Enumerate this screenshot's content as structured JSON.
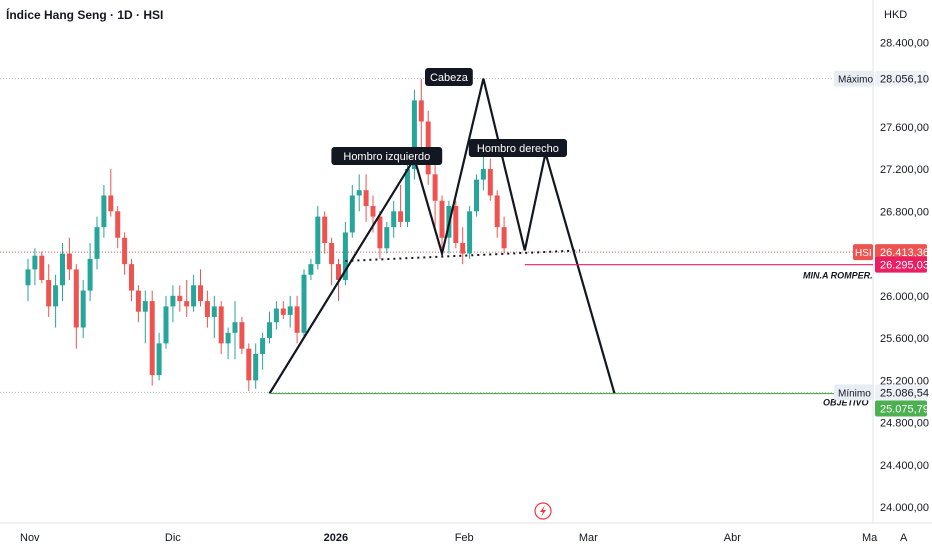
{
  "header": {
    "title": "Índice Hang Seng · 1D · HSI",
    "currency": "HKD"
  },
  "chart_data": {
    "type": "candlestick",
    "ylim": [
      23850,
      28800
    ],
    "y_ticks": [
      "28.400,00",
      "27.600,00",
      "27.200,00",
      "26.800,00",
      "26.000,00",
      "25.600,00",
      "25.200,00",
      "24.800,00",
      "24.400,00",
      "24.000,00"
    ],
    "y_tick_values": [
      28400,
      27600,
      27200,
      26800,
      26000,
      25600,
      25200,
      24800,
      24400,
      24000
    ],
    "x_ticks": [
      {
        "label": "Nov",
        "i": 0
      },
      {
        "label": "Dic",
        "i": 21
      },
      {
        "label": "2026",
        "i": 44
      },
      {
        "label": "Feb",
        "i": 63
      },
      {
        "label": "Mar",
        "i": 81
      },
      {
        "label": "Abr",
        "i": 102
      },
      {
        "label": "Ma",
        "i": 123
      }
    ],
    "candles": [
      [
        26100,
        26350,
        25950,
        26250
      ],
      [
        26250,
        26450,
        26100,
        26380
      ],
      [
        26380,
        26420,
        26120,
        26150
      ],
      [
        26150,
        26300,
        25800,
        25900
      ],
      [
        25900,
        26200,
        25700,
        26100
      ],
      [
        26100,
        26500,
        25950,
        26400
      ],
      [
        26400,
        26550,
        26150,
        26250
      ],
      [
        26250,
        26300,
        25500,
        25700
      ],
      [
        25700,
        26150,
        25600,
        26050
      ],
      [
        26050,
        26500,
        25950,
        26350
      ],
      [
        26350,
        26750,
        26250,
        26650
      ],
      [
        26650,
        27050,
        26550,
        26950
      ],
      [
        26950,
        27200,
        26750,
        26800
      ],
      [
        26800,
        26850,
        26450,
        26550
      ],
      [
        26550,
        26600,
        26200,
        26300
      ],
      [
        26300,
        26350,
        25950,
        26050
      ],
      [
        26050,
        26100,
        25750,
        25850
      ],
      [
        25850,
        26050,
        25550,
        25950
      ],
      [
        25950,
        26050,
        25150,
        25250
      ],
      [
        25250,
        25650,
        25200,
        25550
      ],
      [
        25550,
        26000,
        25500,
        25900
      ],
      [
        25900,
        26100,
        25750,
        26000
      ],
      [
        26000,
        26100,
        25850,
        25950
      ],
      [
        25950,
        26150,
        25800,
        25900
      ],
      [
        25900,
        26200,
        25850,
        26100
      ],
      [
        26100,
        26250,
        25900,
        25950
      ],
      [
        25950,
        26050,
        25700,
        25800
      ],
      [
        25800,
        26000,
        25600,
        25900
      ],
      [
        25900,
        25950,
        25450,
        25550
      ],
      [
        25550,
        25700,
        25400,
        25650
      ],
      [
        25650,
        25950,
        25400,
        25750
      ],
      [
        25750,
        25800,
        25450,
        25500
      ],
      [
        25500,
        25550,
        25100,
        25200
      ],
      [
        25200,
        25550,
        25120,
        25450
      ],
      [
        25450,
        25650,
        25300,
        25600
      ],
      [
        25600,
        25850,
        25550,
        25750
      ],
      [
        25750,
        25950,
        25680,
        25880
      ],
      [
        25880,
        25950,
        25780,
        25820
      ],
      [
        25820,
        26000,
        25700,
        25900
      ],
      [
        25900,
        26000,
        25550,
        25650
      ],
      [
        25650,
        26250,
        25600,
        26200
      ],
      [
        26200,
        26350,
        26150,
        26300
      ],
      [
        26300,
        26850,
        26250,
        26750
      ],
      [
        26750,
        26800,
        26400,
        26500
      ],
      [
        26500,
        26550,
        26100,
        26300
      ],
      [
        26300,
        26350,
        25950,
        26150
      ],
      [
        26150,
        26700,
        26100,
        26600
      ],
      [
        26600,
        27050,
        26550,
        26950
      ],
      [
        26950,
        27150,
        26800,
        27000
      ],
      [
        27000,
        27150,
        26700,
        26850
      ],
      [
        26850,
        26950,
        26600,
        26750
      ],
      [
        26750,
        26800,
        26350,
        26450
      ],
      [
        26450,
        26700,
        26400,
        26650
      ],
      [
        26650,
        26900,
        26550,
        26800
      ],
      [
        26800,
        27050,
        26650,
        26700
      ],
      [
        26700,
        27250,
        26650,
        27200
      ],
      [
        27200,
        27950,
        27100,
        27850
      ],
      [
        27850,
        28050,
        27400,
        27650
      ],
      [
        27650,
        27750,
        27050,
        27150
      ],
      [
        27150,
        27250,
        26600,
        26900
      ],
      [
        26900,
        26950,
        26450,
        26550
      ],
      [
        26550,
        26900,
        26400,
        26850
      ],
      [
        26850,
        26900,
        26450,
        26500
      ],
      [
        26500,
        26650,
        26300,
        26400
      ],
      [
        26400,
        26850,
        26350,
        26800
      ],
      [
        26800,
        27150,
        26750,
        27100
      ],
      [
        27100,
        27350,
        27000,
        27200
      ],
      [
        27200,
        27300,
        26900,
        26950
      ],
      [
        26950,
        27000,
        26550,
        26650
      ],
      [
        26650,
        26750,
        26400,
        26450
      ]
    ],
    "ticker_label": "HSI",
    "annotations": {
      "left_shoulder": "Hombro izquierdo",
      "head": "Cabeza",
      "right_shoulder": "Hombro derecho",
      "break_label": "MIN.A ROMPER.",
      "target_label": "OBJETIVO"
    },
    "price_tags": {
      "max": {
        "label": "Máximo",
        "value": "28.056,10",
        "v": 28056.1
      },
      "last": {
        "value": "26.413,36",
        "v": 26413.36
      },
      "break": {
        "value": "26.295,03",
        "v": 26295.03
      },
      "min": {
        "label": "Mínimo",
        "value": "25.086,54",
        "v": 25086.54
      },
      "target": {
        "value": "25.075,79",
        "v": 25075.79
      }
    },
    "pattern_points": {
      "trend": [
        [
          35,
          25075
        ],
        [
          56,
          27300
        ],
        [
          60,
          26400
        ],
        [
          66,
          28056
        ],
        [
          72,
          26430
        ],
        [
          75,
          27350
        ],
        [
          85,
          25075
        ]
      ],
      "neckline": [
        [
          46,
          26330
        ],
        [
          80,
          26430
        ]
      ],
      "break_line": [
        [
          72,
          26295
        ],
        [
          129,
          26295
        ]
      ],
      "target_line": [
        [
          35,
          25075
        ],
        [
          129,
          25075
        ]
      ]
    },
    "colors": {
      "up": "#26a69a",
      "down": "#ef5350",
      "break": "#e91e63",
      "target": "#4caf50",
      "line": "#131722"
    }
  },
  "footer": {
    "scale_mode": "A"
  }
}
